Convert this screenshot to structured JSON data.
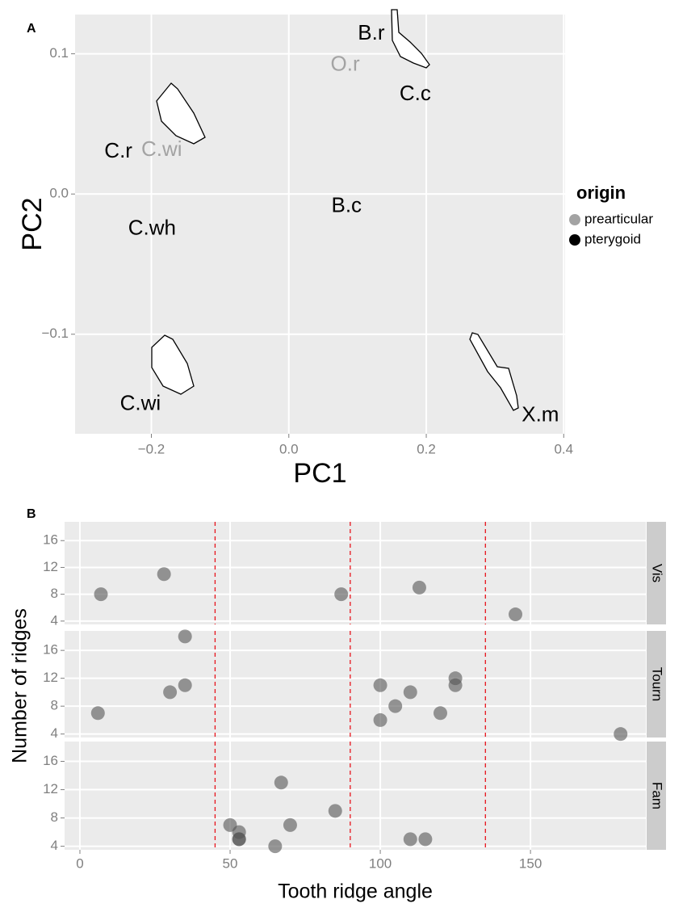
{
  "chart_data": [
    {
      "type": "scatter",
      "panel": "A",
      "x_label": "PC1",
      "y_label": "PC2",
      "xlim": [
        -0.311,
        0.402
      ],
      "ylim": [
        -0.171,
        0.128
      ],
      "xticks": [
        {
          "value": -0.2,
          "label": "−0.2"
        },
        {
          "value": 0,
          "label": "0.0"
        },
        0.2,
        0.4
      ],
      "yticks": [
        {
          "value": -0.1,
          "label": "−0.1"
        },
        {
          "value": 0,
          "label": "0.0"
        },
        0.1
      ],
      "grid": true,
      "legend_title": "origin",
      "legend": "right",
      "series": [
        {
          "name": "prearticular",
          "color": "#a3a3a3",
          "labels": [
            "O.r",
            "C.wi"
          ],
          "x": [
            0.082,
            -0.185
          ],
          "values": [
            0.092,
            0.031
          ]
        },
        {
          "name": "pterygoid",
          "color": "#000000",
          "labels": [
            "B.r",
            "C.c",
            "C.r",
            "B.c",
            "C.wh",
            "C.wi",
            "X.m"
          ],
          "x": [
            0.12,
            0.184,
            -0.248,
            0.084,
            -0.199,
            -0.216,
            0.366
          ],
          "values": [
            0.114,
            0.071,
            0.03,
            -0.009,
            -0.025,
            -0.15,
            -0.158
          ]
        }
      ]
    },
    {
      "type": "facet_scatter",
      "panel": "B",
      "x_label": "Tooth ridge angle",
      "y_label": "Number of ridges",
      "xlim": [
        -5.1,
        188.4
      ],
      "ylim": [
        3.5,
        18.8
      ],
      "xticks": [
        0,
        50,
        100,
        150
      ],
      "yticks": [
        4,
        8,
        12,
        16
      ],
      "grid": true,
      "color": "#555555",
      "vlines": [
        45,
        90,
        135
      ],
      "vline_color": "#e8141c",
      "facets": [
        {
          "name": "Vis",
          "x": [
            7,
            28,
            87,
            113,
            145
          ],
          "values": [
            8,
            11,
            8,
            9,
            5
          ]
        },
        {
          "name": "Tourn",
          "x": [
            35,
            6,
            30,
            35,
            100,
            110,
            105,
            100,
            120,
            125,
            125,
            180
          ],
          "values": [
            18,
            7,
            10,
            11,
            11,
            10,
            8,
            6,
            7,
            12,
            11,
            4
          ]
        },
        {
          "name": "Fam",
          "x": [
            50,
            53,
            53,
            53,
            67,
            70,
            65,
            85,
            110,
            115
          ],
          "values": [
            7,
            6,
            5,
            5,
            13,
            7,
            4,
            9,
            5,
            5
          ]
        }
      ]
    }
  ]
}
